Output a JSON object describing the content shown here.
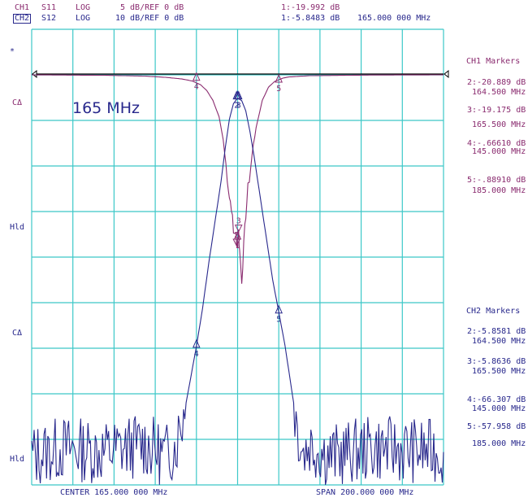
{
  "header": {
    "ch1_label": "CH1",
    "ch1_param": "S11",
    "ch1_format": "LOG",
    "ch1_scale": "5 dB/REF 0 dB",
    "ch1_marker": "1:-19.992 dB",
    "ch2_label": "CH2",
    "ch2_param": "S12",
    "ch2_format": "LOG",
    "ch2_scale": "10 dB/REF 0 dB",
    "ch2_marker": "1:-5.8483 dB",
    "marker_freq": "165.000 000 MHz"
  },
  "left_annotations": {
    "star": "*",
    "c1": "CΔ",
    "hld1": "Hld",
    "c2": "CΔ",
    "hld2": "Hld"
  },
  "center_label": "165 MHz",
  "footer": {
    "center": "CENTER 165.000 000 MHz",
    "span": "SPAN 200.000 000 MHz"
  },
  "ch1_markers": {
    "title": "CH1 Markers",
    "m2_val": "2:-20.889 dB",
    "m2_freq": "164.500 MHz",
    "m3_val": "3:-19.175 dB",
    "m3_freq": "165.500 MHz",
    "m4_val": "4:-.66610 dB",
    "m4_freq": "145.000 MHz",
    "m5_val": "5:-.88910 dB",
    "m5_freq": "185.000 MHz"
  },
  "ch2_markers": {
    "title": "CH2 Markers",
    "m2_val": "2:-5.8581 dB",
    "m2_freq": "164.500 MHz",
    "m3_val": "3:-5.8636 dB",
    "m3_freq": "165.500 MHz",
    "m4_val": "4:-66.307 dB",
    "m4_freq": "145.000 MHz",
    "m5_val": "5:-57.958 dB",
    "m5_freq": "185.000 MHz"
  },
  "marker_labels": {
    "m1": "1",
    "m2": "2",
    "m3": "3",
    "m4": "4",
    "m5": "5"
  },
  "colors": {
    "grid": "#3cc8c8",
    "ch1": "#8a2b6f",
    "ch2": "#28288c",
    "ref": "#000000"
  },
  "chart_data": [
    {
      "type": "line",
      "channel": "CH1",
      "parameter": "S11",
      "format": "LOG",
      "scale_db_per_div": 5,
      "ref_db": 0,
      "center_mhz": 165,
      "span_mhz": 200,
      "xlim": [
        65,
        265
      ],
      "ylim": [
        -50,
        0
      ],
      "x": [
        65,
        100,
        120,
        130,
        138,
        143,
        147,
        150,
        153,
        156,
        158,
        160,
        161,
        162,
        163,
        164,
        164.5,
        165,
        165.5,
        166,
        167,
        168,
        169,
        170,
        172,
        174,
        177,
        180,
        183,
        187,
        190,
        200,
        230,
        265
      ],
      "values": [
        -0.1,
        -0.15,
        -0.25,
        -0.4,
        -0.6,
        -0.85,
        -1.3,
        -2.0,
        -3.2,
        -5.2,
        -8.0,
        -12.5,
        -15.0,
        -16.0,
        -19.5,
        -19.0,
        -20.9,
        -20.0,
        -19.2,
        -21.5,
        -25.0,
        -21.0,
        -17.0,
        -14.0,
        -10.0,
        -6.5,
        -3.2,
        -1.6,
        -0.9,
        -0.5,
        -0.35,
        -0.2,
        -0.12,
        -0.1
      ],
      "markers": [
        {
          "id": 1,
          "x": 165.0,
          "value": -19.992
        },
        {
          "id": 2,
          "x": 164.5,
          "value": -20.889
        },
        {
          "id": 3,
          "x": 165.5,
          "value": -19.175
        },
        {
          "id": 4,
          "x": 145.0,
          "value": -0.6661
        },
        {
          "id": 5,
          "x": 185.0,
          "value": -0.8891
        }
      ]
    },
    {
      "type": "line",
      "channel": "CH2",
      "parameter": "S12",
      "format": "LOG",
      "scale_db_per_div": 10,
      "ref_db": 0,
      "center_mhz": 165,
      "span_mhz": 200,
      "xlim": [
        65,
        265
      ],
      "ylim": [
        -100,
        0
      ],
      "x": [
        65,
        80,
        100,
        120,
        130,
        135,
        140,
        145,
        148,
        151,
        154,
        157,
        159,
        161,
        163,
        165,
        167,
        169,
        171,
        173,
        176,
        179,
        182,
        185,
        188,
        191,
        194,
        197,
        200,
        210,
        230,
        265
      ],
      "values": [
        -93,
        -91,
        -92,
        -90,
        -93,
        -90,
        -80,
        -66.3,
        -57,
        -46,
        -36,
        -26,
        -18,
        -11,
        -7.2,
        -5.85,
        -6.5,
        -9,
        -14,
        -20,
        -30,
        -40,
        -50,
        -57.96,
        -66,
        -76,
        -86,
        -92,
        -90,
        -93,
        -91,
        -92
      ],
      "markers": [
        {
          "id": 1,
          "x": 165.0,
          "value": -5.8483
        },
        {
          "id": 2,
          "x": 164.5,
          "value": -5.8581
        },
        {
          "id": 3,
          "x": 165.5,
          "value": -5.8636
        },
        {
          "id": 4,
          "x": 145.0,
          "value": -66.307
        },
        {
          "id": 5,
          "x": 185.0,
          "value": -57.958
        }
      ]
    }
  ]
}
